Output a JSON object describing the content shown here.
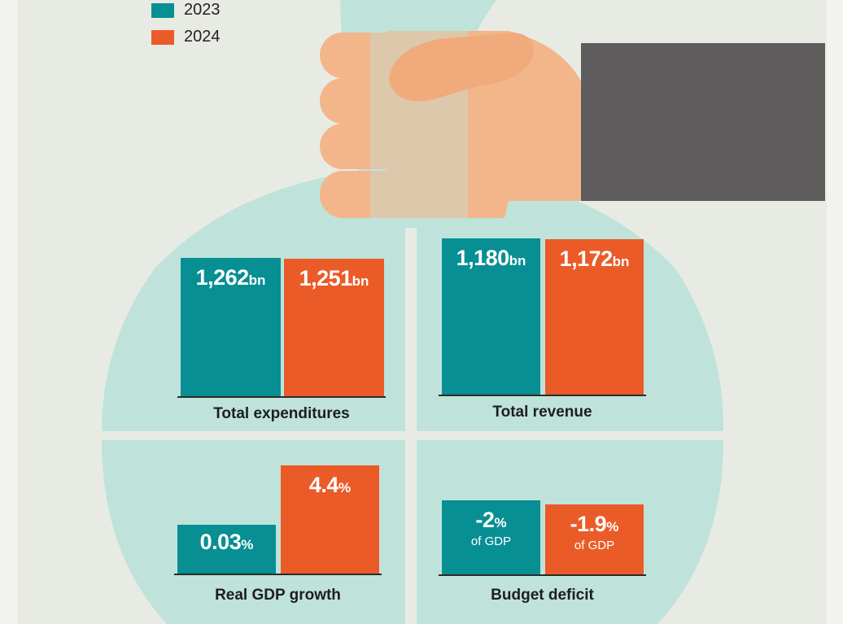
{
  "colors": {
    "y2023": "#078f93",
    "y2024": "#eb5b27",
    "bag": "#bfe3da",
    "background": "#e8ebe4",
    "sleeve": "#5e5c5c",
    "hand": "#f3b68a"
  },
  "legend": [
    {
      "label": "2023",
      "color": "#078f93"
    },
    {
      "label": "2024",
      "color": "#eb5b27"
    }
  ],
  "chart_data": [
    {
      "type": "bar",
      "category": "Total expenditures",
      "series": [
        {
          "name": "2023",
          "value": 1262,
          "display": "1,262",
          "unit": "bn"
        },
        {
          "name": "2024",
          "value": 1251,
          "display": "1,251",
          "unit": "bn"
        }
      ]
    },
    {
      "type": "bar",
      "category": "Total revenue",
      "series": [
        {
          "name": "2023",
          "value": 1180,
          "display": "1,180",
          "unit": "bn"
        },
        {
          "name": "2024",
          "value": 1172,
          "display": "1,172",
          "unit": "bn"
        }
      ]
    },
    {
      "type": "bar",
      "category": "Real GDP growth",
      "series": [
        {
          "name": "2023",
          "value": 0.03,
          "display": "0.03",
          "unit": "%"
        },
        {
          "name": "2024",
          "value": 4.4,
          "display": "4.4",
          "unit": "%"
        }
      ]
    },
    {
      "type": "bar",
      "category": "Budget deficit",
      "series": [
        {
          "name": "2023",
          "value": -2,
          "display": "-2",
          "unit": "%",
          "sub": "of GDP"
        },
        {
          "name": "2024",
          "value": -1.9,
          "display": "-1.9",
          "unit": "%",
          "sub": "of GDP"
        }
      ]
    }
  ]
}
